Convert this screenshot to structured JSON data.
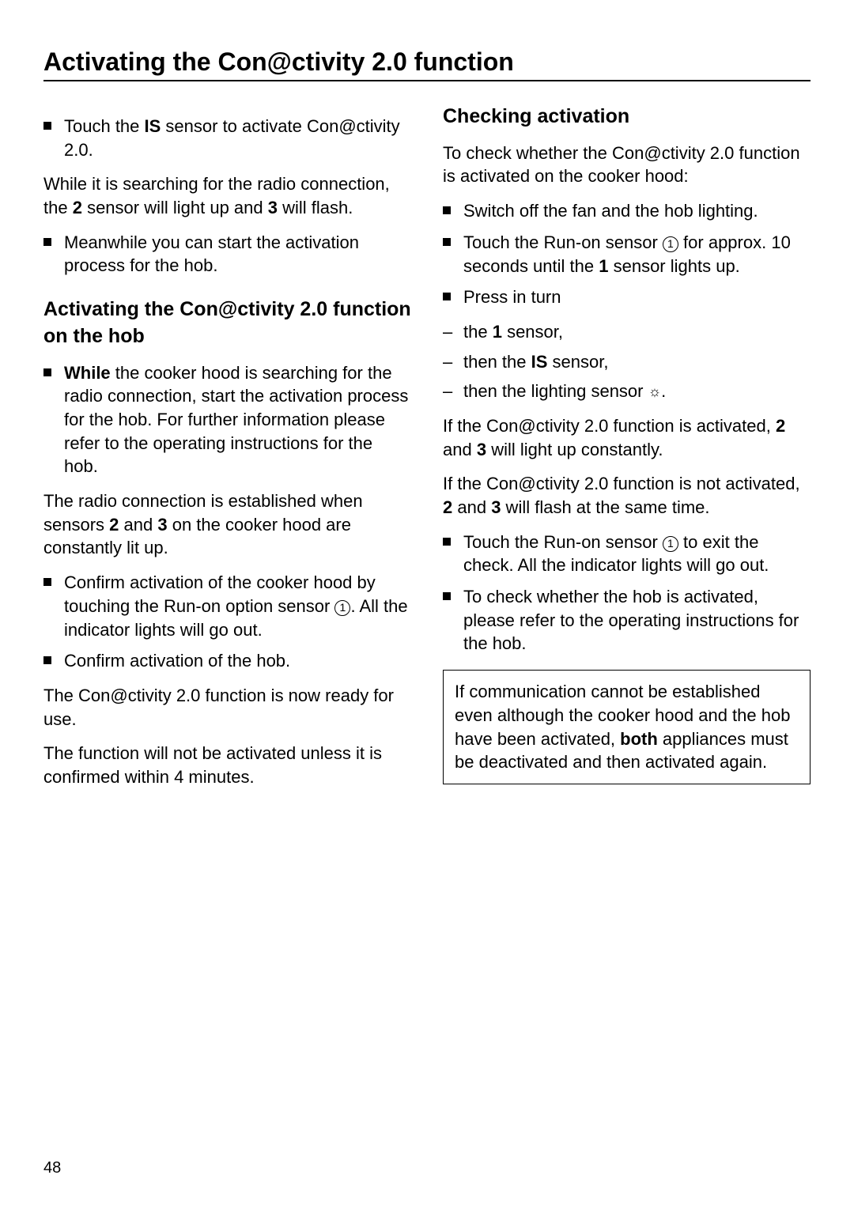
{
  "page": {
    "title": "Activating the Con@ctivity 2.0 function",
    "number": "48"
  },
  "left": {
    "step1_prefix": "Touch the ",
    "step1_bold": "IS",
    "step1_suffix": " sensor to activate Con@ctivity 2.0.",
    "p1_a": "While it is searching for the radio connection, the ",
    "p1_b": "2",
    "p1_c": " sensor will light up and ",
    "p1_d": "3",
    "p1_e": " will flash.",
    "step2": "Meanwhile you can start the activation process for the hob.",
    "h2": "Activating the Con@ctivity 2.0 function on the hob",
    "step3_bold": "While",
    "step3_rest": " the cooker hood is searching for the radio connection, start the activation process for the hob. For further information please refer to the operating instructions for the hob.",
    "p2_a": "The radio connection is established when sensors ",
    "p2_b": "2",
    "p2_c": " and ",
    "p2_d": "3",
    "p2_e": " on the cooker hood are constantly lit up.",
    "step4_a": "Confirm activation of the cooker hood by touching the Run-on option sensor ",
    "step4_circ": "1",
    "step4_b": ". All the indicator lights will go out.",
    "step5": "Confirm activation of the hob.",
    "p3": "The Con@ctivity 2.0 function is now ready for use.",
    "p4": "The function will not be activated unless it is confirmed within 4 minutes."
  },
  "right": {
    "h2": "Checking activation",
    "p1": "To check whether the Con@ctivity 2.0 function is activated on the cooker hood:",
    "step1": "Switch off the fan and the hob lighting.",
    "step2_a": "Touch the Run-on sensor ",
    "step2_circ": "1",
    "step2_b": " for approx. 10 seconds until the ",
    "step2_bold": "1",
    "step2_c": " sensor lights up.",
    "step3": "Press in turn",
    "dash1_a": "the ",
    "dash1_b": "1",
    "dash1_c": " sensor,",
    "dash2_a": "then the ",
    "dash2_b": "IS",
    "dash2_c": " sensor,",
    "dash3_a": "then the lighting sensor ",
    "dash3_icon": "☼",
    "dash3_b": ".",
    "p2_a": "If the Con@ctivity 2.0 function is activated, ",
    "p2_b": "2",
    "p2_c": " and ",
    "p2_d": "3",
    "p2_e": " will light up constantly.",
    "p3_a": "If the Con@ctivity 2.0 function is not activated, ",
    "p3_b": "2",
    "p3_c": " and ",
    "p3_d": "3",
    "p3_e": " will flash at the same time.",
    "step4_a": "Touch the Run-on sensor ",
    "step4_circ": "1",
    "step4_b": " to exit the check. All the indicator lights will go out.",
    "step5": "To check whether the hob is activated, please refer to the operating instructions for the hob.",
    "note_a": "If communication cannot be established even although the cooker hood and the hob have been activated, ",
    "note_bold": "both",
    "note_b": " appliances must be deactivated and then activated again."
  }
}
